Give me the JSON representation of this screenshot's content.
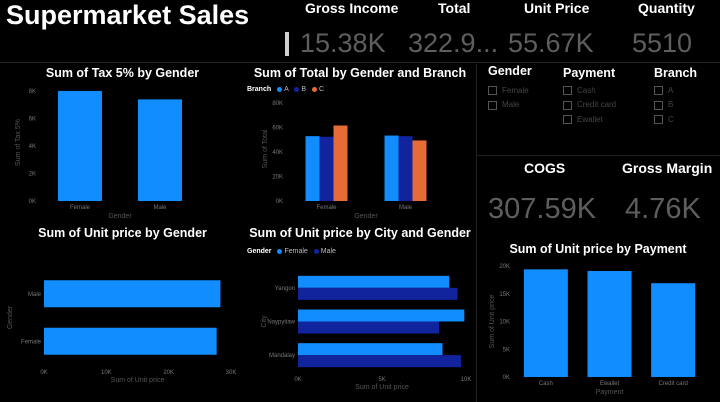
{
  "header": {
    "title": "Supermarket Sales"
  },
  "kpis": [
    {
      "label": "Gross Income",
      "value": "15.38K"
    },
    {
      "label": "Total",
      "value": "322.9..."
    },
    {
      "label": "Unit Price",
      "value": "55.67K"
    },
    {
      "label": "Quantity",
      "value": "5510"
    }
  ],
  "kpis2": [
    {
      "label": "COGS",
      "value": "307.59K"
    },
    {
      "label": "Gross Margin",
      "value": "4.76K"
    }
  ],
  "slicers": [
    {
      "title": "Gender",
      "items": [
        "Female",
        "Male"
      ]
    },
    {
      "title": "Payment",
      "items": [
        "Cash",
        "Credit card",
        "Ewallet"
      ]
    },
    {
      "title": "Branch",
      "items": [
        "A",
        "B",
        "C"
      ]
    }
  ],
  "colors": {
    "blue": "#118dff",
    "navy": "#12239e",
    "orange": "#e66c37",
    "background": "#000000"
  },
  "chart_data": [
    {
      "type": "bar",
      "title": "Sum of Tax 5% by Gender",
      "categories": [
        "Female",
        "Male"
      ],
      "values": [
        7995,
        7384
      ],
      "xlabel": "Gender",
      "ylabel": "Sum of Tax 5%",
      "yticks": [
        "0K",
        "2K",
        "4K",
        "6K",
        "8K"
      ],
      "ylim": [
        0,
        8500
      ]
    },
    {
      "type": "bar",
      "title": "Sum of Total by Gender and Branch",
      "legend_title": "Branch",
      "categories": [
        "Female",
        "Male"
      ],
      "series": [
        {
          "name": "A",
          "values": [
            53000,
            53500
          ]
        },
        {
          "name": "B",
          "values": [
            52500,
            53000
          ]
        },
        {
          "name": "C",
          "values": [
            61700,
            49500
          ]
        }
      ],
      "xlabel": "Gender",
      "ylabel": "Sum of Total",
      "yticks": [
        "0K",
        "20K",
        "40K",
        "60K",
        "80K"
      ],
      "ylim": [
        0,
        85000
      ]
    },
    {
      "type": "bar",
      "orientation": "horizontal",
      "title": "Sum of Unit price by Gender",
      "categories": [
        "Male",
        "Female"
      ],
      "values": [
        28300,
        27700
      ],
      "xlabel": "Sum of Unit price",
      "ylabel": "Gender",
      "xticks": [
        "0K",
        "10K",
        "20K",
        "30K"
      ],
      "xlim": [
        0,
        30000
      ]
    },
    {
      "type": "bar",
      "orientation": "horizontal",
      "title": "Sum of Unit price by City and Gender",
      "legend_title": "Gender",
      "categories": [
        "Yangon",
        "Naypyitaw",
        "Mandalay"
      ],
      "series": [
        {
          "name": "Female",
          "values": [
            9000,
            9900,
            8600
          ]
        },
        {
          "name": "Male",
          "values": [
            9500,
            8400,
            9700
          ]
        }
      ],
      "xlabel": "Sum of Unit price",
      "ylabel": "City",
      "xticks": [
        "0K",
        "5K",
        "10K"
      ],
      "xlim": [
        0,
        10000
      ]
    },
    {
      "type": "bar",
      "title": "Sum of Unit price by Payment",
      "categories": [
        "Cash",
        "Ewallet",
        "Credit card"
      ],
      "values": [
        19400,
        19100,
        16900
      ],
      "xlabel": "Payment",
      "ylabel": "Sum of Unit price",
      "yticks": [
        "0K",
        "5K",
        "10K",
        "15K",
        "20K"
      ],
      "ylim": [
        0,
        20000
      ]
    }
  ]
}
